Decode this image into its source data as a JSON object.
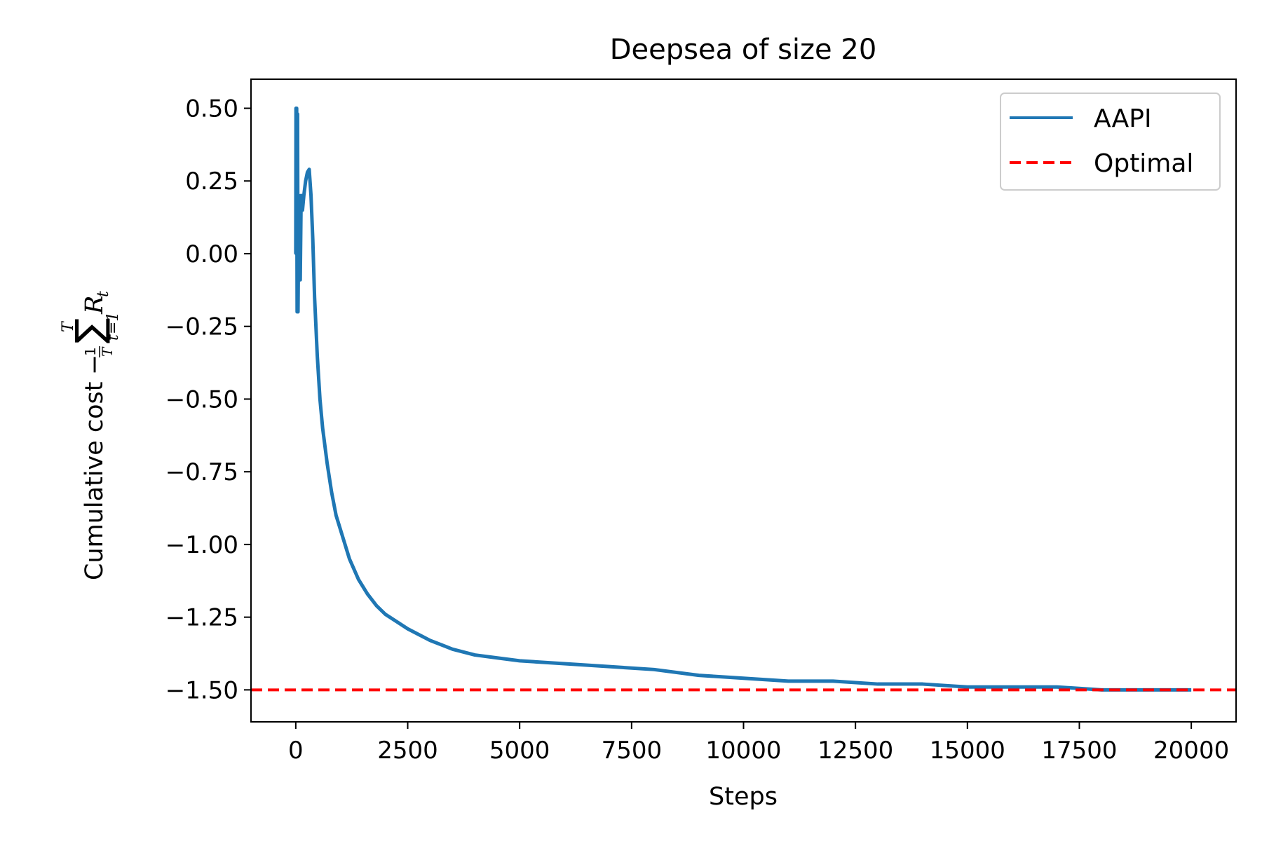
{
  "chart_data": {
    "type": "line",
    "title": "Deepsea of size 20",
    "xlabel": "Steps",
    "ylabel": {
      "text": "Cumulative cost",
      "formula": {
        "minus": "−",
        "numerator": "1",
        "denominator": "T",
        "sum": "∑",
        "upper": "T",
        "lower": "t=1",
        "var": "R",
        "sub": "t"
      }
    },
    "xlim": [
      -1000,
      21000
    ],
    "ylim": [
      -1.61,
      0.6
    ],
    "xticks": [
      0,
      2500,
      5000,
      7500,
      10000,
      12500,
      15000,
      17500,
      20000
    ],
    "xtick_labels": [
      "0",
      "2500",
      "5000",
      "7500",
      "10000",
      "12500",
      "15000",
      "17500",
      "20000"
    ],
    "yticks": [
      0.5,
      0.25,
      0.0,
      -0.25,
      -0.5,
      -0.75,
      -1.0,
      -1.25,
      -1.5
    ],
    "ytick_labels": [
      "0.50",
      "0.25",
      "0.00",
      "−0.25",
      "−0.50",
      "−0.75",
      "−1.00",
      "−1.25",
      "−1.50"
    ],
    "grid": false,
    "legend_position": "top-right",
    "series": [
      {
        "name": "AAPI",
        "color": "#1f77b4",
        "style": "solid",
        "x": [
          0,
          5,
          10,
          20,
          30,
          40,
          50,
          60,
          70,
          80,
          100,
          120,
          150,
          180,
          220,
          260,
          300,
          340,
          380,
          420,
          480,
          540,
          600,
          700,
          800,
          900,
          1000,
          1200,
          1400,
          1600,
          1800,
          2000,
          2500,
          3000,
          3500,
          4000,
          4500,
          5000,
          6000,
          7000,
          8000,
          9000,
          10000,
          11000,
          12000,
          13000,
          14000,
          15000,
          16000,
          17000,
          18000,
          19000,
          20000
        ],
        "y": [
          0.0,
          0.5,
          0.0,
          0.5,
          -0.2,
          0.48,
          -0.2,
          0.0,
          0.2,
          0.1,
          -0.09,
          0.2,
          0.15,
          0.2,
          0.25,
          0.28,
          0.29,
          0.2,
          0.05,
          -0.15,
          -0.35,
          -0.5,
          -0.6,
          -0.72,
          -0.82,
          -0.9,
          -0.95,
          -1.05,
          -1.12,
          -1.17,
          -1.21,
          -1.24,
          -1.29,
          -1.33,
          -1.36,
          -1.38,
          -1.39,
          -1.4,
          -1.41,
          -1.42,
          -1.43,
          -1.45,
          -1.46,
          -1.47,
          -1.47,
          -1.48,
          -1.48,
          -1.49,
          -1.49,
          -1.49,
          -1.5,
          -1.5,
          -1.5
        ]
      },
      {
        "name": "Optimal",
        "color": "#ff0000",
        "style": "dashed",
        "y_constant": -1.5
      }
    ]
  }
}
